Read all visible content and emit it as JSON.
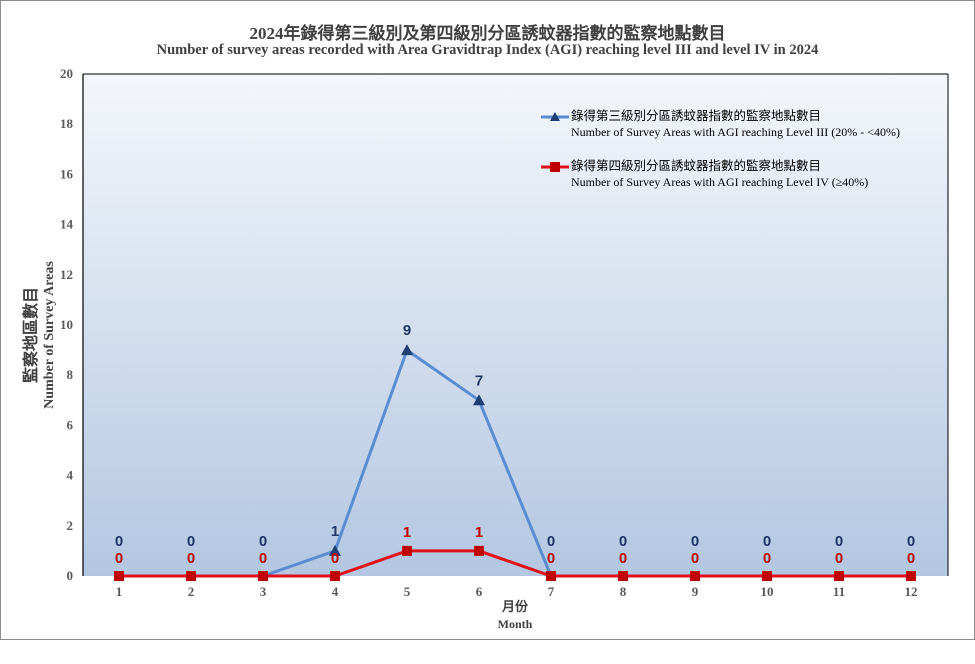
{
  "title": {
    "zh": "2024年錄得第三級別及第四級別分區誘蚊器指數的監察地點數目",
    "en": "Number  of survey areas recorded  with  Area Gravidtrap  Index (AGI) reaching  level III and  level IV in 2024"
  },
  "axes": {
    "y_label_zh": "監察地區數目",
    "y_label_en": "Number  of Survey Areas",
    "x_label_zh": "月份",
    "x_label_en": "Month",
    "y_ticks": [
      "0",
      "2",
      "4",
      "6",
      "8",
      "10",
      "12",
      "14",
      "16",
      "18",
      "20"
    ],
    "x_ticks": [
      "1",
      "2",
      "3",
      "4",
      "5",
      "6",
      "7",
      "8",
      "9",
      "10",
      "11",
      "12"
    ]
  },
  "legend": [
    {
      "zh": "錄得第三級別分區誘蚊器指數的監察地點數目",
      "en": "Number  of Survey Areas with AGI reaching Level III (20% - <40%)",
      "color": "#5B8BD0",
      "marker": "triangle"
    },
    {
      "zh": "錄得第四級別分區誘蚊器指數的監察地點數目",
      "en": "Number  of Survey Areas with AGI reaching Level IV (≥40%)",
      "color": "#E0101A",
      "marker": "square"
    }
  ],
  "colors": {
    "series1_line": "#5B8BD0",
    "series1_marker": "#1F3F73",
    "series1_label": "#1F3864",
    "series2_line": "#E0101A",
    "series2_marker": "#C00000",
    "series2_label": "#C00000",
    "plot_bg_top": "#F4F7FB",
    "plot_bg_bottom": "#B3C7E2"
  },
  "chart_data": {
    "type": "line",
    "title": "2024年錄得第三級別及第四級別分區誘蚊器指數的監察地點數目 / Number of survey areas recorded with Area Gravidtrap Index (AGI) reaching level III and level IV in 2024",
    "xlabel": "月份 Month",
    "ylabel": "監察地區數目 Number of Survey Areas",
    "categories": [
      1,
      2,
      3,
      4,
      5,
      6,
      7,
      8,
      9,
      10,
      11,
      12
    ],
    "ylim": [
      0,
      20
    ],
    "y_tick_step": 2,
    "grid": false,
    "legend_position": "upper right (inside)",
    "series": [
      {
        "name": "Number of Survey Areas with AGI reaching Level III (20% - <40%)",
        "values": [
          0,
          0,
          0,
          1,
          9,
          7,
          0,
          0,
          0,
          0,
          0,
          0
        ]
      },
      {
        "name": "Number of Survey Areas with AGI reaching Level IV (≥40%)",
        "values": [
          0,
          0,
          0,
          0,
          1,
          1,
          0,
          0,
          0,
          0,
          0,
          0
        ]
      }
    ]
  }
}
